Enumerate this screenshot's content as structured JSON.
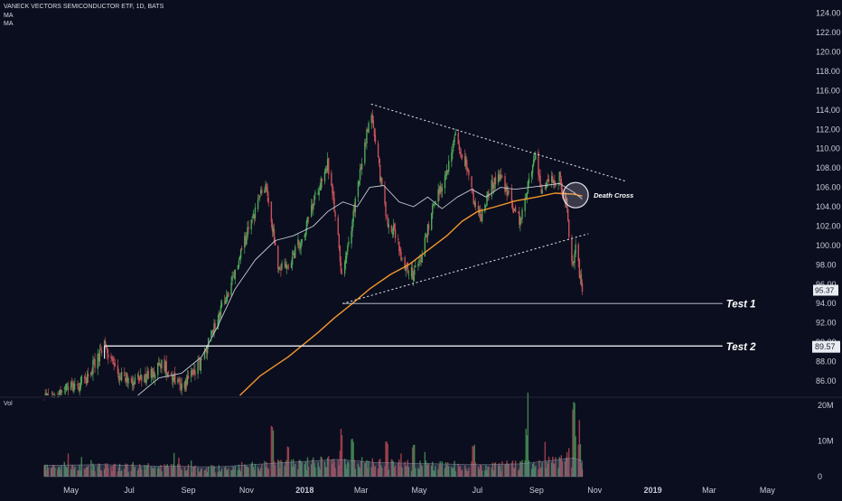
{
  "chart_data": {
    "type": "candlestick",
    "symbol_line": "VANECK VECTORS SEMICONDUCTOR ETF, 1D, BATS",
    "indicator_labels": [
      "MA",
      "MA"
    ],
    "volume_label": "Vol",
    "price_axis": {
      "ticks": [
        "124.00",
        "122.00",
        "120.00",
        "118.00",
        "116.00",
        "114.00",
        "112.00",
        "110.00",
        "108.00",
        "106.00",
        "104.00",
        "102.00",
        "100.00",
        "98.00",
        "96.00",
        "94.00",
        "92.00",
        "90.00",
        "88.00",
        "86.00"
      ],
      "range": [
        84.5,
        125.0
      ],
      "last_price": "95.37",
      "marked_price": "89.57"
    },
    "volume_axis": {
      "ticks": [
        "20M",
        "10M",
        "0"
      ],
      "max": 21000000
    },
    "time_axis": {
      "labels": [
        "May",
        "Jul",
        "Sep",
        "Nov",
        "2018",
        "Mar",
        "May",
        "Jul",
        "Sep",
        "Nov",
        "2019",
        "Mar",
        "May"
      ],
      "bold_labels": [
        "2018",
        "2019"
      ],
      "start": "2017-04-01",
      "end": "2019-05-31",
      "data_end": "2018-10-19"
    },
    "price_path": [
      [
        "2017-04-01",
        84.0
      ],
      [
        "2017-05-15",
        86.0
      ],
      [
        "2017-06-05",
        89.6
      ],
      [
        "2017-06-20",
        86.5
      ],
      [
        "2017-07-15",
        86.0
      ],
      [
        "2017-08-05",
        87.8
      ],
      [
        "2017-08-25",
        85.5
      ],
      [
        "2017-09-15",
        88.0
      ],
      [
        "2017-10-01",
        92.5
      ],
      [
        "2017-10-15",
        95.5
      ],
      [
        "2017-11-01",
        101.0
      ],
      [
        "2017-11-15",
        105.2
      ],
      [
        "2017-11-22",
        105.8
      ],
      [
        "2017-11-28",
        102.0
      ],
      [
        "2017-12-05",
        97.5
      ],
      [
        "2017-12-15",
        98.0
      ],
      [
        "2018-01-01",
        101.5
      ],
      [
        "2018-01-15",
        106.0
      ],
      [
        "2018-01-25",
        108.5
      ],
      [
        "2018-02-05",
        101.0
      ],
      [
        "2018-02-09",
        96.5
      ],
      [
        "2018-02-15",
        99.5
      ],
      [
        "2018-02-28",
        107.5
      ],
      [
        "2018-03-07",
        111.5
      ],
      [
        "2018-03-12",
        113.8
      ],
      [
        "2018-03-20",
        108.0
      ],
      [
        "2018-03-28",
        102.5
      ],
      [
        "2018-04-05",
        101.5
      ],
      [
        "2018-04-15",
        98.0
      ],
      [
        "2018-04-25",
        97.0
      ],
      [
        "2018-05-05",
        99.5
      ],
      [
        "2018-05-15",
        104.0
      ],
      [
        "2018-05-30",
        107.5
      ],
      [
        "2018-06-08",
        111.3
      ],
      [
        "2018-06-20",
        108.0
      ],
      [
        "2018-06-27",
        104.5
      ],
      [
        "2018-07-05",
        103.0
      ],
      [
        "2018-07-15",
        106.0
      ],
      [
        "2018-07-25",
        107.5
      ],
      [
        "2018-08-05",
        104.5
      ],
      [
        "2018-08-15",
        102.5
      ],
      [
        "2018-08-25",
        107.0
      ],
      [
        "2018-08-31",
        109.5
      ],
      [
        "2018-09-07",
        105.5
      ],
      [
        "2018-09-15",
        106.5
      ],
      [
        "2018-09-25",
        107.0
      ],
      [
        "2018-10-02",
        104.5
      ],
      [
        "2018-10-05",
        101.0
      ],
      [
        "2018-10-09",
        97.5
      ],
      [
        "2018-10-12",
        100.0
      ],
      [
        "2018-10-16",
        97.0
      ],
      [
        "2018-10-19",
        95.4
      ]
    ],
    "moving_averages": [
      {
        "name": "MA",
        "color": "#c5cad6",
        "points": [
          [
            "2017-07-10",
            84.5
          ],
          [
            "2017-08-01",
            86.3
          ],
          [
            "2017-08-25",
            86.8
          ],
          [
            "2017-09-15",
            88.5
          ],
          [
            "2017-10-01",
            91.5
          ],
          [
            "2017-10-20",
            95.5
          ],
          [
            "2017-11-10",
            98.5
          ],
          [
            "2017-12-01",
            100.5
          ],
          [
            "2017-12-20",
            101.0
          ],
          [
            "2018-01-10",
            102.0
          ],
          [
            "2018-01-25",
            103.5
          ],
          [
            "2018-02-10",
            104.5
          ],
          [
            "2018-02-25",
            104.0
          ],
          [
            "2018-03-10",
            106.0
          ],
          [
            "2018-03-25",
            106.2
          ],
          [
            "2018-04-10",
            104.5
          ],
          [
            "2018-04-25",
            104.0
          ],
          [
            "2018-05-10",
            105.0
          ],
          [
            "2018-05-25",
            103.8
          ],
          [
            "2018-06-10",
            105.0
          ],
          [
            "2018-06-25",
            105.8
          ],
          [
            "2018-07-10",
            105.0
          ],
          [
            "2018-07-25",
            106.0
          ],
          [
            "2018-08-10",
            105.8
          ],
          [
            "2018-08-25",
            106.0
          ],
          [
            "2018-09-10",
            106.2
          ],
          [
            "2018-09-25",
            106.4
          ],
          [
            "2018-10-10",
            105.5
          ],
          [
            "2018-10-19",
            104.8
          ]
        ]
      },
      {
        "name": "MA",
        "color": "#f4962c",
        "points": [
          [
            "2017-10-25",
            84.5
          ],
          [
            "2017-11-15",
            86.5
          ],
          [
            "2017-12-15",
            88.5
          ],
          [
            "2018-01-15",
            91.0
          ],
          [
            "2018-02-01",
            92.5
          ],
          [
            "2018-02-20",
            94.0
          ],
          [
            "2018-03-10",
            95.5
          ],
          [
            "2018-04-01",
            97.0
          ],
          [
            "2018-04-20",
            98.0
          ],
          [
            "2018-05-10",
            99.5
          ],
          [
            "2018-05-30",
            101.0
          ],
          [
            "2018-06-15",
            102.5
          ],
          [
            "2018-07-01",
            103.5
          ],
          [
            "2018-07-20",
            104.0
          ],
          [
            "2018-08-10",
            104.6
          ],
          [
            "2018-09-01",
            105.0
          ],
          [
            "2018-09-20",
            105.4
          ],
          [
            "2018-10-10",
            105.3
          ],
          [
            "2018-10-19",
            105.1
          ]
        ]
      }
    ],
    "trendlines": [
      {
        "from": [
          "2018-03-12",
          114.6
        ],
        "to": [
          "2018-12-05",
          106.6
        ],
        "style": "dotted"
      },
      {
        "from": [
          "2018-02-10",
          94.0
        ],
        "to": [
          "2018-10-25",
          101.2
        ],
        "style": "dotted"
      }
    ],
    "horizontal_lines": [
      {
        "from": "2018-02-10",
        "to": "2019-03-15",
        "price": 94.0,
        "label": "Test 1"
      },
      {
        "from": "2017-06-05",
        "to": "2019-03-15",
        "price": 89.6,
        "label": "Test 2"
      }
    ],
    "annotations": [
      {
        "text": "Death Cross",
        "date": "2018-10-12",
        "price": 105.2
      }
    ],
    "volume_profile": [
      [
        "2017-04-01",
        3.0
      ],
      [
        "2017-06-01",
        3.2
      ],
      [
        "2017-08-01",
        2.8
      ],
      [
        "2017-10-01",
        2.6
      ],
      [
        "2017-12-01",
        3.6
      ],
      [
        "2018-02-05",
        4.6
      ],
      [
        "2018-03-15",
        3.8
      ],
      [
        "2018-05-01",
        3.5
      ],
      [
        "2018-07-01",
        3.2
      ],
      [
        "2018-08-15",
        3.4
      ],
      [
        "2018-10-10",
        5.0
      ],
      [
        "2018-10-19",
        4.2
      ]
    ],
    "volume_spikes": [
      [
        "2017-11-28",
        14.6
      ],
      [
        "2017-12-15",
        8.5
      ],
      [
        "2018-02-09",
        13.5
      ],
      [
        "2018-02-20",
        11.0
      ],
      [
        "2018-03-28",
        10.0
      ],
      [
        "2018-04-25",
        9.0
      ],
      [
        "2018-06-27",
        9.0
      ],
      [
        "2018-08-22",
        13.5
      ],
      [
        "2018-10-10",
        21.2
      ],
      [
        "2018-10-16",
        9.5
      ]
    ]
  },
  "colors": {
    "background": "#0b0e1e",
    "up": "#4da95a",
    "down": "#c8525a",
    "text": "#c8ccd8",
    "label_bg": "#e9ebf2"
  }
}
